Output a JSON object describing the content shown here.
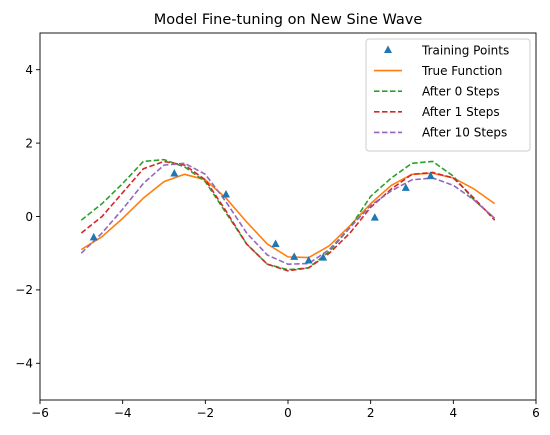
{
  "chart_data": {
    "type": "line",
    "title": "Model Fine-tuning on New Sine Wave",
    "xlabel": "",
    "ylabel": "",
    "xlim": [
      -6,
      6
    ],
    "ylim": [
      -5,
      5
    ],
    "xticks": [
      -6,
      -4,
      -2,
      0,
      2,
      4,
      6
    ],
    "yticks": [
      -4,
      -2,
      0,
      2,
      4
    ],
    "xtick_labels": [
      "−6",
      "−4",
      "−2",
      "0",
      "2",
      "4",
      "6"
    ],
    "ytick_labels": [
      "−4",
      "−2",
      "0",
      "2",
      "4"
    ],
    "grid": false,
    "legend_position": "top-right",
    "training_points": {
      "name": "Training Points",
      "color": "#1f77b4",
      "marker": "triangle",
      "x": [
        -4.7,
        -2.75,
        -1.5,
        -0.3,
        0.15,
        0.5,
        0.85,
        2.1,
        2.85,
        3.45
      ],
      "y": [
        -0.57,
        1.17,
        0.6,
        -0.75,
        -1.1,
        -1.2,
        -1.12,
        -0.03,
        0.78,
        1.1
      ]
    },
    "series": [
      {
        "name": "True Function",
        "color": "#ff7f0e",
        "dash": "solid",
        "x": [
          -5,
          -4.5,
          -4,
          -3.5,
          -3,
          -2.5,
          -2,
          -1.5,
          -1,
          -0.5,
          0,
          0.5,
          1,
          1.5,
          2,
          2.5,
          3,
          3.5,
          4,
          4.5,
          5
        ],
        "y": [
          -0.9,
          -0.55,
          -0.05,
          0.5,
          0.95,
          1.15,
          1.0,
          0.5,
          -0.15,
          -0.75,
          -1.1,
          -1.12,
          -0.8,
          -0.25,
          0.35,
          0.85,
          1.15,
          1.18,
          1.05,
          0.75,
          0.35
        ]
      },
      {
        "name": "After 0 Steps",
        "color": "#2ca02c",
        "dash": "dashed",
        "x": [
          -5,
          -4.5,
          -4,
          -3.5,
          -3,
          -2.5,
          -2,
          -1.5,
          -1,
          -0.5,
          0,
          0.5,
          1,
          1.5,
          2,
          2.5,
          3,
          3.5,
          4,
          4.5,
          5
        ],
        "y": [
          -0.1,
          0.35,
          0.9,
          1.5,
          1.55,
          1.35,
          0.95,
          0.1,
          -0.75,
          -1.3,
          -1.45,
          -1.4,
          -0.95,
          -0.3,
          0.55,
          1.05,
          1.45,
          1.5,
          1.1,
          0.45,
          -0.05
        ]
      },
      {
        "name": "After 1 Steps",
        "color": "#d62728",
        "dash": "dashed",
        "x": [
          -5,
          -4.5,
          -4,
          -3.5,
          -3,
          -2.5,
          -2,
          -1.5,
          -1,
          -0.5,
          0,
          0.5,
          1,
          1.5,
          2,
          2.5,
          3,
          3.5,
          4,
          4.5,
          5
        ],
        "y": [
          -0.45,
          0.0,
          0.65,
          1.3,
          1.5,
          1.4,
          1.0,
          0.15,
          -0.75,
          -1.3,
          -1.48,
          -1.4,
          -1.0,
          -0.45,
          0.25,
          0.75,
          1.15,
          1.2,
          1.05,
          0.5,
          -0.1
        ]
      },
      {
        "name": "After 10 Steps",
        "color": "#9467bd",
        "dash": "dashed",
        "x": [
          -5,
          -4.5,
          -4,
          -3.5,
          -3,
          -2.5,
          -2,
          -1.5,
          -1,
          -0.5,
          0,
          0.5,
          1,
          1.5,
          2,
          2.5,
          3,
          3.5,
          4,
          4.5,
          5
        ],
        "y": [
          -1.0,
          -0.45,
          0.2,
          0.9,
          1.4,
          1.45,
          1.15,
          0.4,
          -0.45,
          -1.05,
          -1.3,
          -1.28,
          -0.9,
          -0.3,
          0.3,
          0.7,
          1.0,
          1.05,
          0.85,
          0.45,
          -0.05
        ]
      }
    ],
    "legend": {
      "items": [
        {
          "label": "Training Points",
          "color": "#1f77b4",
          "kind": "marker"
        },
        {
          "label": "True Function",
          "color": "#ff7f0e",
          "kind": "solid"
        },
        {
          "label": "After 0 Steps",
          "color": "#2ca02c",
          "kind": "dashed"
        },
        {
          "label": "After 1 Steps",
          "color": "#d62728",
          "kind": "dashed"
        },
        {
          "label": "After 10 Steps",
          "color": "#9467bd",
          "kind": "dashed"
        }
      ]
    }
  }
}
